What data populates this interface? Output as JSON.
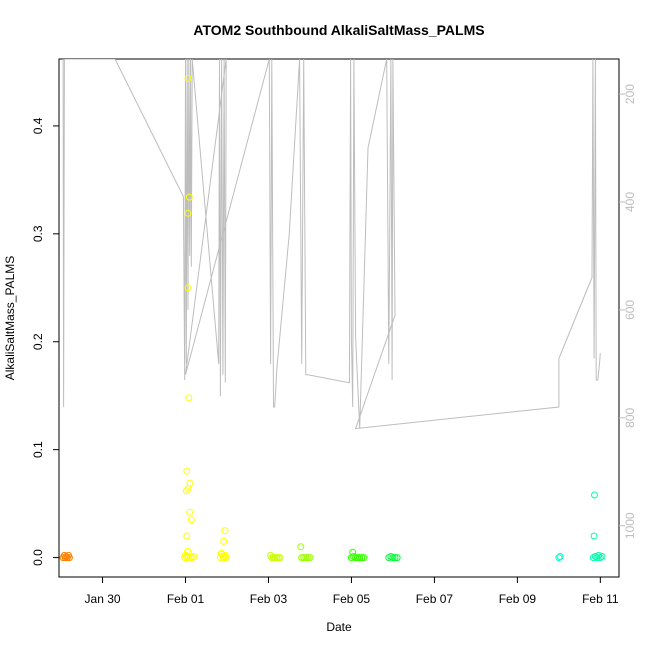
{
  "chart_data": {
    "type": "scatter",
    "title": "ATOM2 Southbound AlkaliSaltMass_PALMS",
    "xlabel": "Date",
    "ylabel": "AlkaliSaltMass_PALMS",
    "x_ticks": [
      "Jan 30",
      "Feb 01",
      "Feb 03",
      "Feb 05",
      "Feb 07",
      "Feb 09",
      "Feb 11"
    ],
    "x_tick_days": [
      30,
      32,
      34,
      36,
      38,
      40,
      42
    ],
    "xlim_days": [
      28.95,
      42.45
    ],
    "y_ticks": [
      0.0,
      0.1,
      0.2,
      0.3,
      0.4
    ],
    "y_tick_labels": [
      "0.0",
      "0.1",
      "0.2",
      "0.3",
      "0.4"
    ],
    "ylim": [
      -0.018,
      0.462
    ],
    "y2_ticks": [
      200,
      400,
      600,
      800,
      1000
    ],
    "y2_tick_labels": [
      "200",
      "400",
      "600",
      "800",
      "1000"
    ],
    "y2lim": [
      1095,
      135
    ],
    "points": [
      {
        "x": 29.05,
        "y": 0.0,
        "c": "#ff7f00"
      },
      {
        "x": 29.08,
        "y": 0.002,
        "c": "#ff7f00"
      },
      {
        "x": 29.1,
        "y": 0.0,
        "c": "#ff7f00"
      },
      {
        "x": 29.12,
        "y": 0.001,
        "c": "#ff7f00"
      },
      {
        "x": 29.15,
        "y": 0.0,
        "c": "#ff7f00"
      },
      {
        "x": 29.18,
        "y": 0.002,
        "c": "#ff7f00"
      },
      {
        "x": 29.2,
        "y": 0.0,
        "c": "#ff7f00"
      },
      {
        "x": 32.06,
        "y": 0.444,
        "c": "#ffff00"
      },
      {
        "x": 32.09,
        "y": 0.334,
        "c": "#ffff00"
      },
      {
        "x": 32.06,
        "y": 0.319,
        "c": "#ffff00"
      },
      {
        "x": 32.06,
        "y": 0.25,
        "c": "#ffff00"
      },
      {
        "x": 32.08,
        "y": 0.148,
        "c": "#ffff00"
      },
      {
        "x": 32.03,
        "y": 0.08,
        "c": "#ffff00"
      },
      {
        "x": 32.11,
        "y": 0.069,
        "c": "#ffff00"
      },
      {
        "x": 32.06,
        "y": 0.064,
        "c": "#ffff00"
      },
      {
        "x": 32.02,
        "y": 0.062,
        "c": "#ffff00"
      },
      {
        "x": 32.1,
        "y": 0.042,
        "c": "#ffff00"
      },
      {
        "x": 32.14,
        "y": 0.035,
        "c": "#ffff00"
      },
      {
        "x": 32.03,
        "y": 0.02,
        "c": "#ffff00"
      },
      {
        "x": 32.05,
        "y": 0.006,
        "c": "#ffff00"
      },
      {
        "x": 31.98,
        "y": 0.0,
        "c": "#ffff00"
      },
      {
        "x": 32.0,
        "y": 0.002,
        "c": "#ffff00"
      },
      {
        "x": 32.03,
        "y": 0.0,
        "c": "#ffff00"
      },
      {
        "x": 32.07,
        "y": 0.001,
        "c": "#ffff00"
      },
      {
        "x": 32.12,
        "y": 0.0,
        "c": "#ffff00"
      },
      {
        "x": 32.16,
        "y": 0.0,
        "c": "#ffff00"
      },
      {
        "x": 32.2,
        "y": 0.001,
        "c": "#ffff00"
      },
      {
        "x": 32.95,
        "y": 0.025,
        "c": "#ffff00"
      },
      {
        "x": 32.92,
        "y": 0.015,
        "c": "#ffff00"
      },
      {
        "x": 32.86,
        "y": 0.004,
        "c": "#ffff00"
      },
      {
        "x": 32.9,
        "y": 0.001,
        "c": "#ffff00"
      },
      {
        "x": 32.84,
        "y": 0.0,
        "c": "#ffff00"
      },
      {
        "x": 32.88,
        "y": 0.003,
        "c": "#ffff00"
      },
      {
        "x": 32.93,
        "y": 0.0,
        "c": "#ffff00"
      },
      {
        "x": 32.96,
        "y": 0.002,
        "c": "#ffff00"
      },
      {
        "x": 32.98,
        "y": 0.0,
        "c": "#ffff00"
      },
      {
        "x": 34.05,
        "y": 0.002,
        "c": "#ccff00"
      },
      {
        "x": 34.08,
        "y": 0.0,
        "c": "#ccff00"
      },
      {
        "x": 34.12,
        "y": 0.0,
        "c": "#ccff00"
      },
      {
        "x": 34.16,
        "y": 0.0,
        "c": "#ccff00"
      },
      {
        "x": 34.2,
        "y": 0.0,
        "c": "#ccff00"
      },
      {
        "x": 34.24,
        "y": 0.0,
        "c": "#ccff00"
      },
      {
        "x": 34.28,
        "y": 0.0,
        "c": "#ccff00"
      },
      {
        "x": 34.78,
        "y": 0.01,
        "c": "#99ff00"
      },
      {
        "x": 34.8,
        "y": 0.0,
        "c": "#99ff00"
      },
      {
        "x": 34.85,
        "y": 0.0,
        "c": "#99ff00"
      },
      {
        "x": 34.9,
        "y": 0.0,
        "c": "#99ff00"
      },
      {
        "x": 34.95,
        "y": 0.0,
        "c": "#99ff00"
      },
      {
        "x": 35.0,
        "y": 0.0,
        "c": "#99ff00"
      },
      {
        "x": 36.03,
        "y": 0.005,
        "c": "#33ff00"
      },
      {
        "x": 36.0,
        "y": 0.0,
        "c": "#33ff00"
      },
      {
        "x": 36.05,
        "y": 0.001,
        "c": "#33ff00"
      },
      {
        "x": 36.1,
        "y": 0.0,
        "c": "#33ff00"
      },
      {
        "x": 36.15,
        "y": 0.0,
        "c": "#33ff00"
      },
      {
        "x": 36.2,
        "y": 0.0,
        "c": "#33ff00"
      },
      {
        "x": 36.25,
        "y": 0.0,
        "c": "#33ff00"
      },
      {
        "x": 36.3,
        "y": 0.0,
        "c": "#33ff00"
      },
      {
        "x": 36.9,
        "y": 0.0,
        "c": "#00ff33"
      },
      {
        "x": 36.95,
        "y": 0.001,
        "c": "#00ff33"
      },
      {
        "x": 37.0,
        "y": 0.0,
        "c": "#00ff33"
      },
      {
        "x": 37.05,
        "y": 0.0,
        "c": "#00ff33"
      },
      {
        "x": 37.1,
        "y": 0.0,
        "c": "#00ff33"
      },
      {
        "x": 41.0,
        "y": 0.0,
        "c": "#00ffcc"
      },
      {
        "x": 41.03,
        "y": 0.001,
        "c": "#00ffcc"
      },
      {
        "x": 41.86,
        "y": 0.058,
        "c": "#00ffaa"
      },
      {
        "x": 41.85,
        "y": 0.02,
        "c": "#00ffaa"
      },
      {
        "x": 41.83,
        "y": 0.0,
        "c": "#00ffaa"
      },
      {
        "x": 41.88,
        "y": 0.001,
        "c": "#00ffaa"
      },
      {
        "x": 41.92,
        "y": 0.0,
        "c": "#00ffaa"
      },
      {
        "x": 41.96,
        "y": 0.002,
        "c": "#00ffaa"
      },
      {
        "x": 42.0,
        "y": 0.0,
        "c": "#00ffaa"
      },
      {
        "x": 42.04,
        "y": 0.001,
        "c": "#00ffaa"
      }
    ],
    "line_y2": {
      "color": "#bdbdbd",
      "x": [
        29.05,
        29.06,
        29.08,
        29.1,
        29.12,
        29.14,
        30.3,
        31.95,
        31.98,
        32.0,
        32.02,
        32.04,
        32.06,
        32.08,
        32.1,
        32.12,
        32.14,
        32.16,
        32.8,
        32.82,
        32.84,
        32.87,
        32.9,
        32.93,
        32.96,
        32.98,
        32.0,
        34.02,
        34.05,
        34.08,
        34.12,
        34.15,
        34.2,
        34.5,
        34.75,
        34.8,
        34.85,
        34.9,
        34.95,
        35.95,
        35.98,
        36.0,
        36.03,
        36.06,
        36.1,
        36.2,
        36.4,
        36.85,
        36.9,
        36.95,
        36.98,
        37.0,
        37.05,
        36.1,
        41.0,
        41.0,
        41.8,
        41.82,
        41.85,
        41.88,
        41.9,
        41.94,
        41.98,
        42.0
      ],
      "y2": [
        135,
        780,
        135,
        135,
        135,
        135,
        135,
        390,
        730,
        135,
        700,
        135,
        600,
        135,
        500,
        135,
        520,
        135,
        700,
        135,
        760,
        135,
        720,
        135,
        735,
        135,
        720,
        135,
        700,
        135,
        780,
        780,
        710,
        460,
        135,
        700,
        135,
        720,
        720,
        735,
        135,
        650,
        780,
        135,
        650,
        820,
        300,
        135,
        700,
        135,
        730,
        135,
        610,
        820,
        780,
        690,
        540,
        135,
        690,
        135,
        730,
        730,
        700,
        680
      ]
    }
  }
}
